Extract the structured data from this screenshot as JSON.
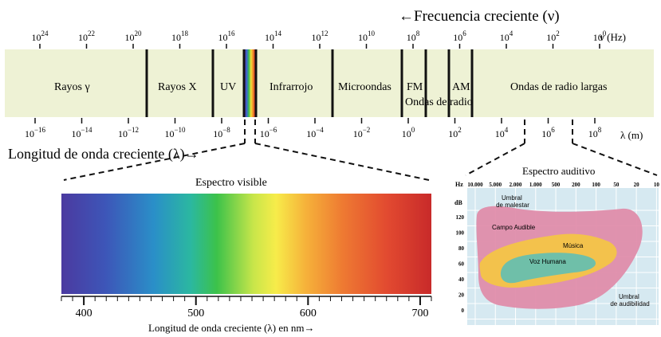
{
  "top_axis": {
    "title": "←Frecuencia creciente (ν)",
    "unit_label": "ν (Hz)",
    "ticks": [
      {
        "base": "10",
        "exp": "24"
      },
      {
        "base": "10",
        "exp": "22"
      },
      {
        "base": "10",
        "exp": "20"
      },
      {
        "base": "10",
        "exp": "18"
      },
      {
        "base": "10",
        "exp": "16"
      },
      {
        "base": "10",
        "exp": "14"
      },
      {
        "base": "10",
        "exp": "12"
      },
      {
        "base": "10",
        "exp": "10"
      },
      {
        "base": "10",
        "exp": "8"
      },
      {
        "base": "10",
        "exp": "6"
      },
      {
        "base": "10",
        "exp": "4"
      },
      {
        "base": "10",
        "exp": "2"
      },
      {
        "base": "10",
        "exp": "0"
      }
    ]
  },
  "bottom_axis": {
    "title": "Longitud de onda creciente (λ)→",
    "unit_label": "λ (m)",
    "ticks": [
      {
        "base": "10",
        "exp": "−16"
      },
      {
        "base": "10",
        "exp": "−14"
      },
      {
        "base": "10",
        "exp": "−12"
      },
      {
        "base": "10",
        "exp": "−10"
      },
      {
        "base": "10",
        "exp": "−8"
      },
      {
        "base": "10",
        "exp": "−6"
      },
      {
        "base": "10",
        "exp": "−4"
      },
      {
        "base": "10",
        "exp": "−2"
      },
      {
        "base": "10",
        "exp": "0"
      },
      {
        "base": "10",
        "exp": "2"
      },
      {
        "base": "10",
        "exp": "4"
      },
      {
        "base": "10",
        "exp": "6"
      },
      {
        "base": "10",
        "exp": "8"
      }
    ]
  },
  "bands": {
    "gamma": "Rayos γ",
    "xray": "Rayos X",
    "uv": "UV",
    "infrared": "Infrarrojo",
    "microwave": "Microondas",
    "fm": "FM",
    "am": "AM",
    "radio": "Ondas de radio",
    "long_radio": "Ondas de radio largas"
  },
  "band_color": "#eef2d5",
  "visible": {
    "title": "Espectro visible",
    "axis_title": "Longitud de onda creciente (λ) en nm→",
    "range": [
      380,
      710
    ],
    "tick_labels": [
      "400",
      "500",
      "600",
      "700"
    ]
  },
  "audio": {
    "title": "Espectro auditivo",
    "hz_label": "Hz",
    "db_label": "dB",
    "freq_labels": [
      "10.000",
      "5.000",
      "2.000",
      "1.000",
      "500",
      "200",
      "100",
      "50",
      "20",
      "10"
    ],
    "db_values": [
      "120",
      "100",
      "80",
      "60",
      "40",
      "20",
      "0"
    ],
    "threshold_pain": [
      "Umbral",
      "de malestar"
    ],
    "audible_field": "Campo Audible",
    "music": "Música",
    "voice": "Voz Humana",
    "threshold_hearing": [
      "Umbral",
      "de audibilidad"
    ],
    "colors": {
      "grid_bg": "#d6e9f1",
      "field": "#e08aa8",
      "music": "#f3c24c",
      "voice": "#6fbfa9"
    }
  }
}
